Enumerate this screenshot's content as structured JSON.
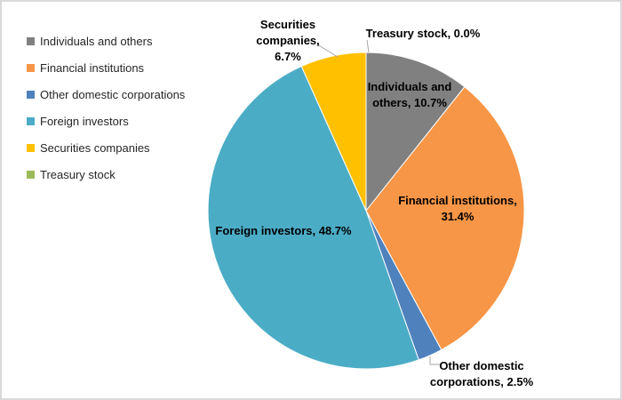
{
  "chart": {
    "background": "#FFFFFF",
    "frame_border_color": "#D9D9D9",
    "leader_line_color": "#A6A6A6",
    "label_text_color": "#000000",
    "legend_text_color": "#262626"
  },
  "legend": {
    "position": "top-left",
    "items": [
      {
        "label": "Individuals and others",
        "color": "#808080"
      },
      {
        "label": "Financial institutions",
        "color": "#F79646"
      },
      {
        "label": "Other domestic corporations",
        "color": "#4F81BD"
      },
      {
        "label": "Foreign investors",
        "color": "#4BACC6"
      },
      {
        "label": "Securities companies",
        "color": "#FFC000"
      },
      {
        "label": "Treasury stock",
        "color": "#9BBB59"
      }
    ]
  },
  "chart_data": {
    "type": "pie",
    "title": "",
    "unit": "%",
    "start_angle_deg": 0,
    "direction": "clockwise",
    "categories": [
      "Treasury stock",
      "Individuals and others",
      "Financial institutions",
      "Other domestic corporations",
      "Foreign investors",
      "Securities companies"
    ],
    "values": [
      0.0,
      10.7,
      31.4,
      2.5,
      48.7,
      6.7
    ],
    "slices": [
      {
        "id": "treasury-stock",
        "name": "Treasury stock",
        "value": 0.0,
        "color": "#9BBB59",
        "label_placement": "outside",
        "label_lines": [
          "Treasury stock, 0.0%"
        ]
      },
      {
        "id": "individuals-and-others",
        "name": "Individuals and others",
        "value": 10.7,
        "color": "#808080",
        "label_placement": "inside",
        "label_lines": [
          "Individuals and",
          "others, 10.7%"
        ]
      },
      {
        "id": "financial-institutions",
        "name": "Financial institutions",
        "value": 31.4,
        "color": "#F79646",
        "label_placement": "inside",
        "label_lines": [
          "Financial institutions,",
          "31.4%"
        ]
      },
      {
        "id": "other-domestic-corporations",
        "name": "Other domestic corporations",
        "value": 2.5,
        "color": "#4F81BD",
        "label_placement": "outside",
        "label_lines": [
          "Other domestic",
          "corporations, 2.5%"
        ]
      },
      {
        "id": "foreign-investors",
        "name": "Foreign investors",
        "value": 48.7,
        "color": "#4BACC6",
        "label_placement": "inside",
        "label_lines": [
          "Foreign investors, 48.7%"
        ]
      },
      {
        "id": "securities-companies",
        "name": "Securities companies",
        "value": 6.7,
        "color": "#FFC000",
        "label_placement": "outside",
        "label_lines": [
          "Securities",
          "companies,",
          "6.7%"
        ]
      }
    ]
  }
}
